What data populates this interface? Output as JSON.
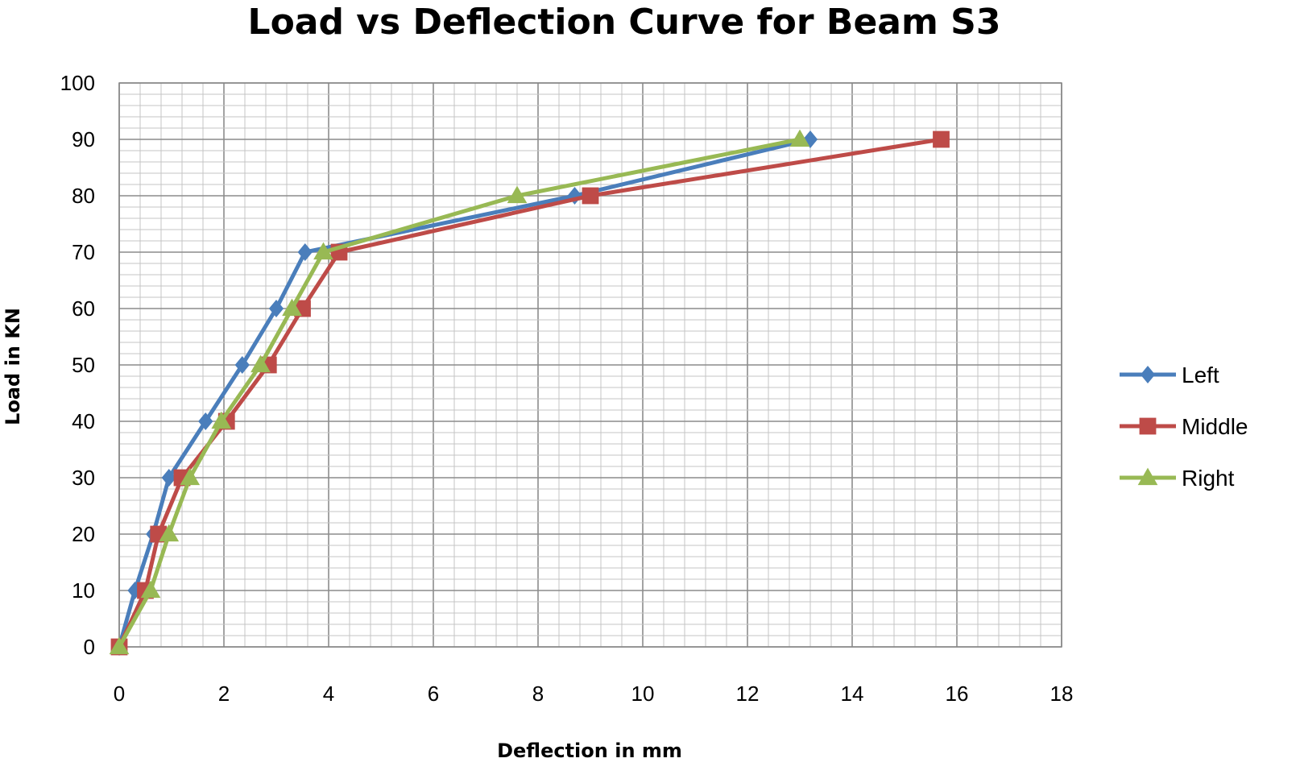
{
  "chart_data": {
    "type": "line",
    "title": "Load vs Deflection Curve for Beam S3",
    "xlabel": "Deflection in mm",
    "ylabel": "Load in KN",
    "xlim": [
      0,
      18
    ],
    "ylim": [
      0,
      100
    ],
    "xticks": [
      0,
      2,
      4,
      6,
      8,
      10,
      12,
      14,
      16,
      18
    ],
    "yticks": [
      0,
      10,
      20,
      30,
      40,
      50,
      60,
      70,
      80,
      90,
      100
    ],
    "grid": true,
    "legend_position": "right",
    "series": [
      {
        "name": "Left",
        "color": "#4a7ebb",
        "marker": "diamond",
        "points": [
          [
            0,
            0
          ],
          [
            0.3,
            10
          ],
          [
            0.65,
            20
          ],
          [
            0.95,
            30
          ],
          [
            1.65,
            40
          ],
          [
            2.35,
            50
          ],
          [
            3.0,
            60
          ],
          [
            3.55,
            70
          ],
          [
            8.7,
            80
          ],
          [
            13.2,
            90
          ]
        ]
      },
      {
        "name": "Middle",
        "color": "#be4b48",
        "marker": "square",
        "points": [
          [
            0,
            0
          ],
          [
            0.5,
            10
          ],
          [
            0.75,
            20
          ],
          [
            1.2,
            30
          ],
          [
            2.05,
            40
          ],
          [
            2.85,
            50
          ],
          [
            3.5,
            60
          ],
          [
            4.2,
            70
          ],
          [
            9.0,
            80
          ],
          [
            15.7,
            90
          ]
        ]
      },
      {
        "name": "Right",
        "color": "#98b954",
        "marker": "triangle",
        "points": [
          [
            0,
            0
          ],
          [
            0.6,
            10
          ],
          [
            0.95,
            20
          ],
          [
            1.35,
            30
          ],
          [
            1.95,
            40
          ],
          [
            2.7,
            50
          ],
          [
            3.3,
            60
          ],
          [
            3.9,
            70
          ],
          [
            7.6,
            80
          ],
          [
            13.0,
            90
          ]
        ]
      }
    ]
  }
}
